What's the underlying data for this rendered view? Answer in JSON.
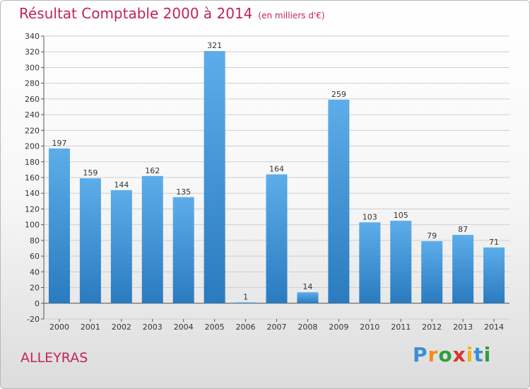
{
  "chart_data": {
    "type": "bar",
    "title": "Résultat Comptable 2000 à 2014",
    "subtitle": "(en milliers d'€)",
    "categories": [
      "2000",
      "2001",
      "2002",
      "2003",
      "2004",
      "2005",
      "2006",
      "2007",
      "2008",
      "2009",
      "2010",
      "2011",
      "2012",
      "2013",
      "2014"
    ],
    "values": [
      197,
      159,
      144,
      162,
      135,
      321,
      1,
      164,
      14,
      259,
      103,
      105,
      79,
      87,
      71
    ],
    "ylim": [
      -20,
      340
    ],
    "yticks": [
      -20,
      0,
      20,
      40,
      60,
      80,
      100,
      120,
      140,
      160,
      180,
      200,
      220,
      240,
      260,
      280,
      300,
      320,
      340
    ],
    "grid": true,
    "xlabel": "",
    "ylabel": ""
  },
  "commune": "ALLEYRAS",
  "brand": {
    "letters": [
      "P",
      "r",
      "o",
      "x",
      "i",
      "t",
      "i"
    ],
    "colors": [
      "#3a8fd6",
      "#f28c1c",
      "#2e9e3e",
      "#d9332e",
      "#f2b21c",
      "#3a8fd6",
      "#2e9e3e"
    ]
  },
  "colors": {
    "title": "#c0245a",
    "bar_top": "#5dadea",
    "bar_bottom": "#2a7bbf"
  }
}
